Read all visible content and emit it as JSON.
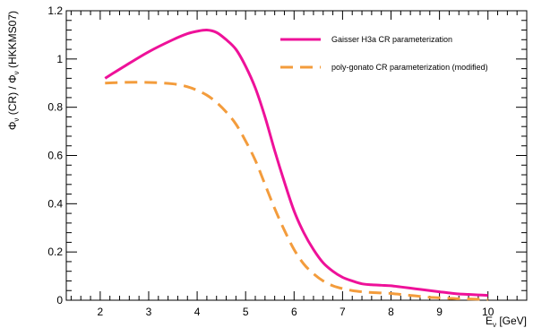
{
  "chart_data": {
    "type": "line",
    "title": "",
    "xlabel": "E",
    "xlabel_sub": "ν",
    "xlabel_unit": " [GeV]",
    "ylabel": "Φ",
    "ylabel_sub1": "ν",
    "ylabel_mid": " (CR) / Φ",
    "ylabel_sub2": "ν",
    "ylabel_end": " (HKKMS07)",
    "xlim": [
      1.3,
      10.8
    ],
    "ylim": [
      0,
      1.2
    ],
    "xticks": [
      2,
      3,
      4,
      5,
      6,
      7,
      8,
      9,
      10
    ],
    "yticks": [
      0,
      0.2,
      0.4,
      0.6,
      0.8,
      1,
      1.2
    ],
    "ytick_labels": [
      "0",
      "0.2",
      "0.4",
      "0.6",
      "0.8",
      "1",
      "1.2"
    ],
    "grid": false,
    "legend_position": "top-right",
    "series": [
      {
        "name": "Gaisser H3a CR parameterization",
        "color": "#ee1199",
        "dash": "solid",
        "x": [
          2.1,
          2.5,
          3.0,
          3.5,
          3.8,
          4.0,
          4.2,
          4.4,
          4.6,
          4.8,
          5.0,
          5.2,
          5.4,
          5.6,
          5.8,
          6.0,
          6.2,
          6.4,
          6.6,
          6.8,
          7.0,
          7.2,
          7.4,
          7.6,
          7.8,
          8.0,
          8.2,
          8.4,
          8.6,
          8.8,
          9.0,
          9.2,
          9.4,
          9.6,
          9.8,
          10.0
        ],
        "y": [
          0.92,
          0.97,
          1.03,
          1.08,
          1.105,
          1.115,
          1.12,
          1.11,
          1.08,
          1.04,
          0.97,
          0.88,
          0.76,
          0.62,
          0.49,
          0.37,
          0.28,
          0.21,
          0.155,
          0.12,
          0.095,
          0.08,
          0.068,
          0.064,
          0.062,
          0.06,
          0.055,
          0.05,
          0.045,
          0.04,
          0.035,
          0.03,
          0.026,
          0.024,
          0.022,
          0.02
        ]
      },
      {
        "name": "poly-gonato CR parameterization (modified)",
        "color": "#f39c3c",
        "dash": "dashed",
        "x": [
          2.1,
          2.5,
          3.0,
          3.5,
          3.8,
          4.0,
          4.2,
          4.4,
          4.6,
          4.8,
          5.0,
          5.2,
          5.4,
          5.6,
          5.8,
          6.0,
          6.2,
          6.4,
          6.6,
          6.8,
          7.0,
          7.2,
          7.4,
          7.6,
          7.8,
          8.0,
          8.2,
          8.4,
          8.6,
          8.8,
          9.0,
          9.2,
          9.4,
          9.6,
          9.8,
          10.0
        ],
        "y": [
          0.9,
          0.903,
          0.903,
          0.897,
          0.885,
          0.87,
          0.85,
          0.82,
          0.78,
          0.73,
          0.66,
          0.58,
          0.48,
          0.38,
          0.29,
          0.21,
          0.15,
          0.11,
          0.08,
          0.06,
          0.048,
          0.04,
          0.035,
          0.032,
          0.03,
          0.028,
          0.024,
          0.02,
          0.016,
          0.012,
          0.01,
          0.008,
          0.006,
          0.005,
          0.004,
          0.003
        ]
      }
    ]
  }
}
